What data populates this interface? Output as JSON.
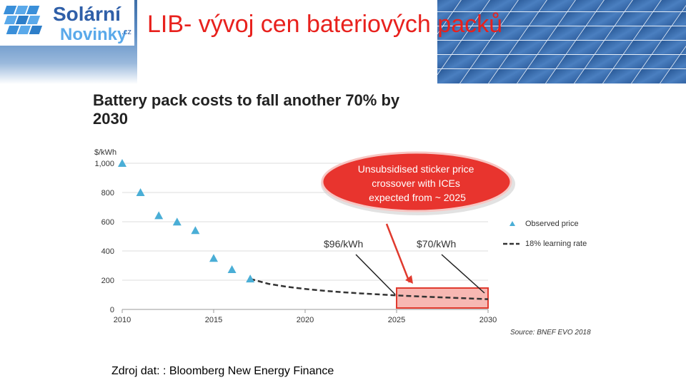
{
  "slide": {
    "title": "LIB- vývoj cen bateriových packů",
    "logo_top": "Solární",
    "logo_bottom": "Novinky",
    "logo_suffix": ".cz",
    "source": "Zdroj dat: : Bloomberg New Energy Finance"
  },
  "colors": {
    "title_red": "#e8211d",
    "observed_marker": "#4aaed6",
    "learning_line": "#333333",
    "callout_red": "#e8342e",
    "highlight_fill": "#f4a09a",
    "highlight_stroke": "#e03a2e"
  },
  "chart_data": {
    "type": "scatter",
    "title": "Battery pack costs to fall another 70% by 2030",
    "ylabel": "$/kWh",
    "xlim": [
      2010,
      2030
    ],
    "ylim": [
      0,
      1000
    ],
    "x_ticks": [
      "2010",
      "2015",
      "2020",
      "2025",
      "2030"
    ],
    "y_ticks": [
      "0",
      "200",
      "400",
      "600",
      "800",
      "1,000"
    ],
    "grid": "horizontal",
    "legend_position": "right",
    "series": [
      {
        "name": "Observed price",
        "x": [
          2010,
          2011,
          2012,
          2013,
          2014,
          2015,
          2016,
          2017
        ],
        "values": [
          1000,
          800,
          642,
          599,
          540,
          350,
          273,
          209
        ]
      },
      {
        "name": "18% learning rate",
        "x": [
          2017,
          2018,
          2019,
          2020,
          2021,
          2022,
          2023,
          2024,
          2025,
          2026,
          2027,
          2028,
          2029,
          2030
        ],
        "values": [
          209,
          175,
          155,
          140,
          128,
          118,
          110,
          103,
          96,
          90,
          85,
          80,
          75,
          70
        ]
      }
    ],
    "annotations": {
      "callout": "Unsubsidised sticker price crossover with ICEs expected from ~ 2025",
      "label_2025": "$96/kWh",
      "label_2030": "$70/kWh",
      "source": "Source: BNEF EVO 2018"
    }
  }
}
